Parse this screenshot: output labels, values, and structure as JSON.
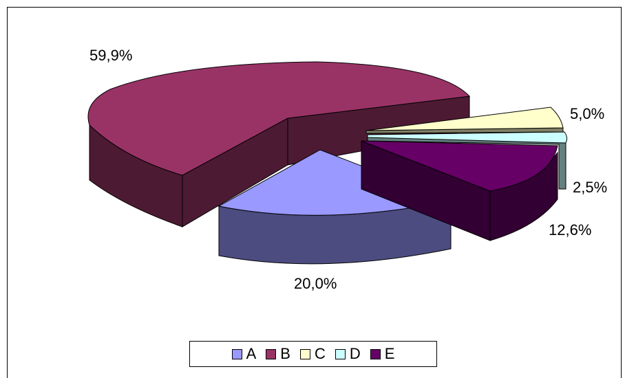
{
  "chart_data": {
    "type": "pie",
    "title": "",
    "legend_position": "bottom",
    "slices": [
      {
        "label": "A",
        "value": 20.0,
        "value_label": "20,0%",
        "color": "#9999ff",
        "side_color": "#4c4c80"
      },
      {
        "label": "B",
        "value": 59.9,
        "value_label": "59,9%",
        "color": "#993366",
        "side_color": "#4d1a33"
      },
      {
        "label": "C",
        "value": 5.0,
        "value_label": "5,0%",
        "color": "#ffffcc",
        "side_color": "#808066"
      },
      {
        "label": "D",
        "value": 2.5,
        "value_label": "2,5%",
        "color": "#ccffff",
        "side_color": "#668080"
      },
      {
        "label": "E",
        "value": 12.6,
        "value_label": "12,6%",
        "color": "#660066",
        "side_color": "#330033"
      }
    ]
  }
}
